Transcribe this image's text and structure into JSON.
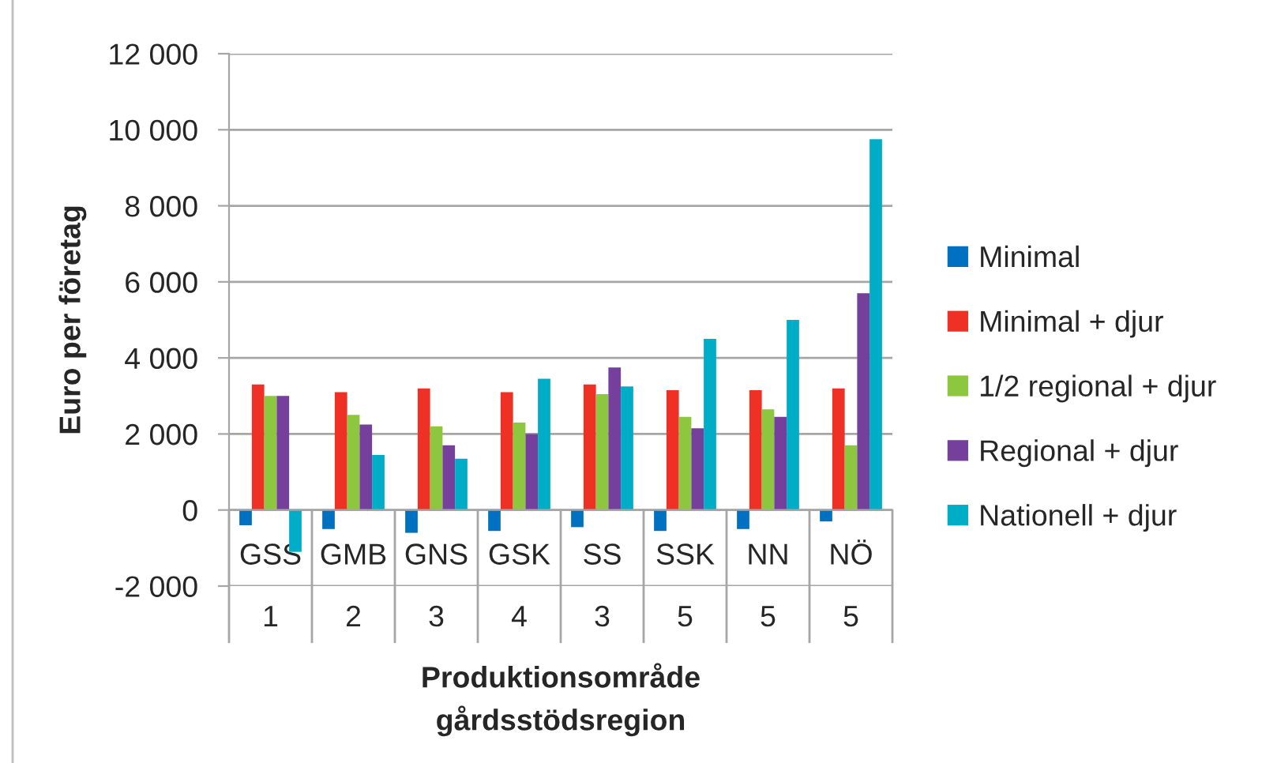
{
  "chart_data": {
    "type": "bar",
    "categories": [
      "GSS\n1",
      "GMB\n2",
      "GNS\n3",
      "GSK\n4",
      "SS\n3",
      "SSK\n5",
      "NN\n5",
      "NÖ\n5"
    ],
    "xlabel": "Produktionsområde\ngårdsstödsregion",
    "ylabel": "Euro per företag",
    "ylim": [
      -2000,
      12000
    ],
    "yticks": [
      {
        "value": -2000,
        "label": "-2 000"
      },
      0,
      {
        "value": 2000,
        "label": "2 000"
      },
      {
        "value": 4000,
        "label": "4 000"
      },
      {
        "value": 6000,
        "label": "6 000"
      },
      {
        "value": 8000,
        "label": "8 000"
      },
      {
        "value": 10000,
        "label": "10 000"
      },
      {
        "value": 12000,
        "label": "12 000"
      }
    ],
    "grid": "y",
    "legend": "right",
    "series": [
      {
        "name": "Minimal",
        "color": "#0070c0",
        "values": [
          -400,
          -500,
          -600,
          -550,
          -450,
          -550,
          -500,
          -300
        ]
      },
      {
        "name": "Minimal + djur",
        "color": "#ee3124",
        "values": [
          3300,
          3100,
          3200,
          3100,
          3300,
          3150,
          3150,
          3200
        ]
      },
      {
        "name": "1/2 regional + djur",
        "color": "#8dc63f",
        "values": [
          3000,
          2500,
          2200,
          2300,
          3050,
          2450,
          2650,
          1700
        ]
      },
      {
        "name": "Regional + djur",
        "color": "#75409b",
        "values": [
          3000,
          2250,
          1700,
          2000,
          3750,
          2150,
          2450,
          5700
        ]
      },
      {
        "name": "Nationell + djur",
        "color": "#00adc6",
        "values": [
          -1100,
          1450,
          1350,
          3450,
          3250,
          4500,
          5000,
          9750
        ]
      }
    ]
  }
}
